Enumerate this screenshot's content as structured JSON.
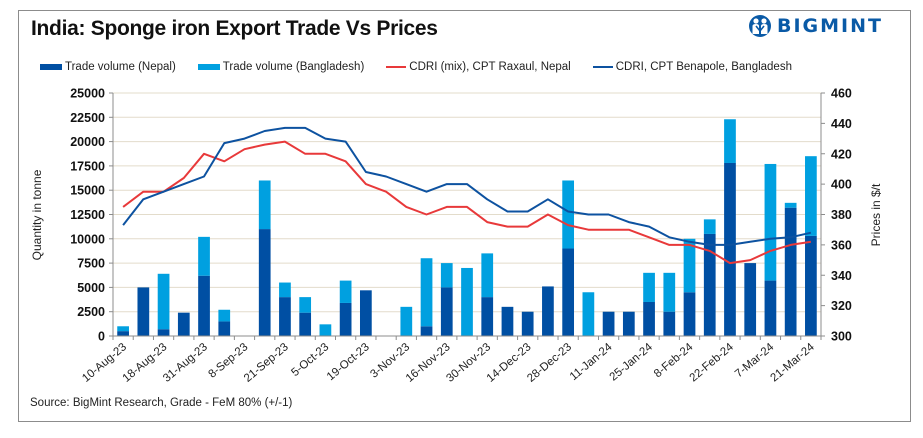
{
  "header": {
    "title": "India: Sponge iron Export Trade Vs Prices",
    "logo_text": "BIGMINT"
  },
  "source": "Source: BigMint Research, Grade - FeM 80% (+/-1)",
  "colors": {
    "nepal_bar": "#004fa3",
    "bangladesh_bar": "#00a0e0",
    "raxaul_line": "#e8393a",
    "benapole_line": "#0d52a0",
    "grid": "#e3dccb",
    "axis": "#8c8c8c"
  },
  "chart_data": {
    "type": "bar",
    "subtype": "stacked bar + line (dual axis)",
    "title": "India: Sponge iron Export Trade Vs Prices",
    "ylabel": "Quantity in tonne",
    "y2label": "Prices in $/t",
    "ylim": [
      0,
      25000
    ],
    "y_ticks": [
      0,
      2500,
      5000,
      7500,
      10000,
      12500,
      15000,
      17500,
      20000,
      22500,
      25000
    ],
    "y2lim": [
      300,
      460
    ],
    "y2_ticks": [
      300,
      320,
      340,
      360,
      380,
      400,
      420,
      440,
      460
    ],
    "grid": true,
    "legend_position": "top",
    "categories": [
      "10-Aug-23",
      "",
      "18-Aug-23",
      "",
      "31-Aug-23",
      "",
      "8-Sep-23",
      "",
      "21-Sep-23",
      "",
      "5-Oct-23",
      "",
      "19-Oct-23",
      "",
      "3-Nov-23",
      "",
      "16-Nov-23",
      "",
      "30-Nov-23",
      "",
      "14-Dec-23",
      "",
      "28-Dec-23",
      "",
      "11-Jan-24",
      "",
      "25-Jan-24",
      "",
      "8-Feb-24",
      "",
      "22-Feb-24",
      "",
      "7-Mar-24",
      "",
      "21-Mar-24"
    ],
    "x_tick_labels": [
      "10-Aug-23",
      "18-Aug-23",
      "31-Aug-23",
      "8-Sep-23",
      "21-Sep-23",
      "5-Oct-23",
      "19-Oct-23",
      "3-Nov-23",
      "16-Nov-23",
      "30-Nov-23",
      "14-Dec-23",
      "28-Dec-23",
      "11-Jan-24",
      "25-Jan-24",
      "8-Feb-24",
      "22-Feb-24",
      "7-Mar-24",
      "21-Mar-24"
    ],
    "series": [
      {
        "name": "Trade volume (Nepal)",
        "kind": "bar",
        "axis": "left",
        "values": [
          500,
          5000,
          700,
          2400,
          6200,
          1500,
          0,
          11000,
          4000,
          2400,
          0,
          3400,
          4700,
          0,
          0,
          1000,
          5000,
          0,
          4000,
          3000,
          2500,
          5100,
          9000,
          0,
          2500,
          2500,
          3500,
          2500,
          4500,
          10500,
          17800,
          7500,
          5700,
          13200,
          10300
        ]
      },
      {
        "name": "Trade volume (Bangladesh)",
        "kind": "bar",
        "axis": "left",
        "values": [
          500,
          0,
          5700,
          0,
          4000,
          1200,
          0,
          5000,
          1500,
          1600,
          1200,
          2300,
          0,
          0,
          3000,
          7000,
          2500,
          7000,
          4500,
          0,
          0,
          0,
          7000,
          4500,
          0,
          0,
          3000,
          4000,
          5500,
          1500,
          4500,
          0,
          12000,
          500,
          8200
        ]
      },
      {
        "name": "CDRI (mix), CPT Raxaul, Nepal",
        "kind": "line",
        "axis": "right",
        "values": [
          385,
          395,
          395,
          404,
          420,
          415,
          423,
          426,
          428,
          420,
          420,
          415,
          400,
          395,
          385,
          380,
          385,
          385,
          375,
          372,
          372,
          380,
          373,
          370,
          370,
          370,
          365,
          360,
          360,
          356,
          348,
          350,
          356,
          360,
          362
        ]
      },
      {
        "name": "CDRI, CPT Benapole, Bangladesh",
        "kind": "line",
        "axis": "right",
        "values": [
          373,
          390,
          395,
          400,
          405,
          427,
          430,
          435,
          437,
          437,
          430,
          428,
          408,
          405,
          400,
          395,
          400,
          400,
          390,
          382,
          382,
          390,
          382,
          380,
          380,
          375,
          372,
          365,
          362,
          360,
          360,
          362,
          364,
          365,
          368
        ]
      }
    ]
  }
}
